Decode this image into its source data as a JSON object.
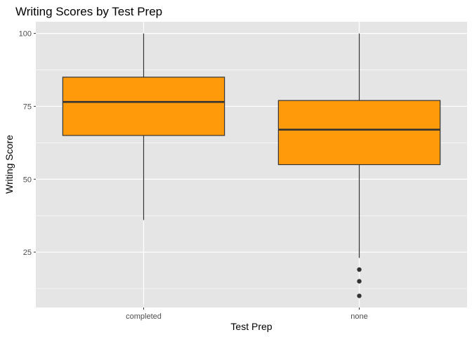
{
  "chart_data": {
    "type": "boxplot",
    "title": "Writing Scores by Test Prep",
    "xlabel": "Test Prep",
    "ylabel": "Writing Score",
    "categories": [
      "completed",
      "none"
    ],
    "yticks": [
      25,
      50,
      75,
      100
    ],
    "ylim": [
      6,
      104
    ],
    "grid": true,
    "boxes": [
      {
        "category": "completed",
        "whisker_low": 36,
        "q1": 65,
        "median": 76.5,
        "q3": 85,
        "whisker_high": 100,
        "outliers": []
      },
      {
        "category": "none",
        "whisker_low": 23,
        "q1": 55,
        "median": 67,
        "q3": 77,
        "whisker_high": 100,
        "outliers": [
          10,
          15,
          19
        ]
      }
    ],
    "colors": {
      "panel": "#e5e5e5",
      "grid_major": "#ffffff",
      "box_fill": "#ff9a0a",
      "box_line": "#333333"
    }
  }
}
